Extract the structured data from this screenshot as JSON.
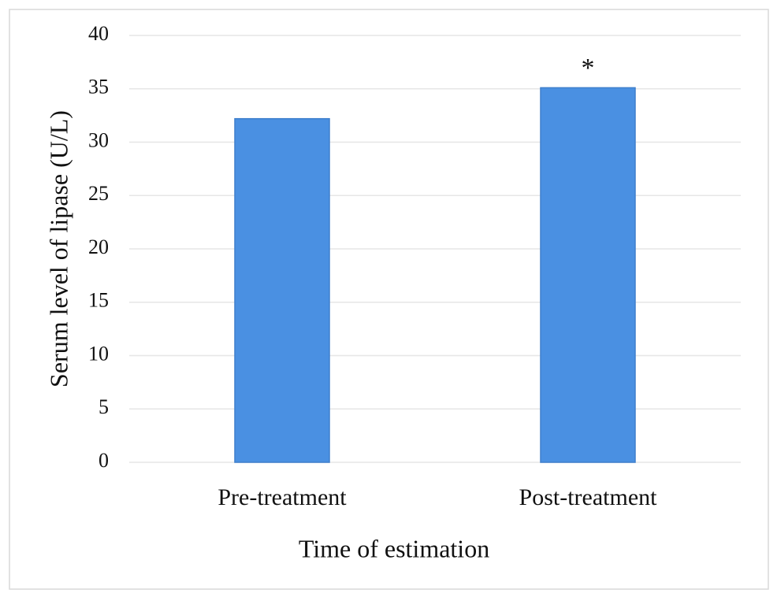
{
  "chart_data": {
    "type": "bar",
    "categories": [
      "Pre-treatment",
      "Post-treatment"
    ],
    "values": [
      32.2,
      35.1
    ],
    "color": "#4a90e2",
    "ylim": [
      0,
      40
    ],
    "yticks": [
      0,
      5,
      10,
      15,
      20,
      25,
      30,
      35,
      40
    ],
    "grid": true,
    "x_label": "Time of estimation",
    "y_label": "Serum level of lipase (U/L)",
    "annotations": [
      {
        "text": "*",
        "x": "Post-treatment"
      }
    ]
  }
}
